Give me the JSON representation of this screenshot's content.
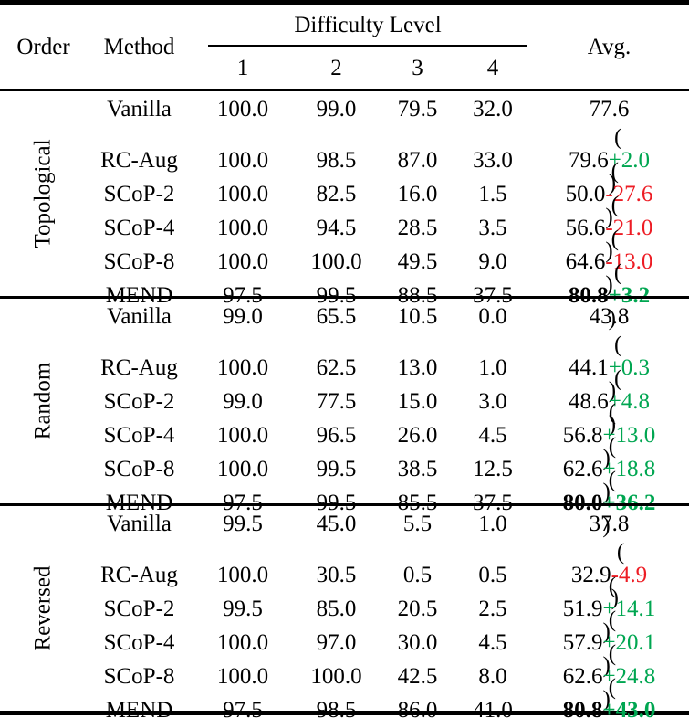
{
  "header": {
    "order": "Order",
    "method": "Method",
    "difficulty": "Difficulty Level",
    "levels": [
      "1",
      "2",
      "3",
      "4"
    ],
    "avg": "Avg."
  },
  "colors": {
    "green": "#00a651",
    "red": "#ed1c24",
    "text": "#000000",
    "background": "#ffffff"
  },
  "sections": [
    {
      "order": "Topological",
      "rows": [
        {
          "method": "Vanilla",
          "d1": "100.0",
          "d2": "99.0",
          "d3": "79.5",
          "d4": "32.0",
          "avg": "77.6",
          "delta": null,
          "delta_color": null,
          "bold": false
        },
        {
          "method": "RC-Aug",
          "d1": "100.0",
          "d2": "98.5",
          "d3": "87.0",
          "d4": "33.0",
          "avg": "79.6",
          "delta": "+2.0",
          "delta_color": "green",
          "bold": false
        },
        {
          "method": "SCoP-2",
          "d1": "100.0",
          "d2": "82.5",
          "d3": "16.0",
          "d4": "1.5",
          "avg": "50.0",
          "delta": "-27.6",
          "delta_color": "red",
          "bold": false
        },
        {
          "method": "SCoP-4",
          "d1": "100.0",
          "d2": "94.5",
          "d3": "28.5",
          "d4": "3.5",
          "avg": "56.6",
          "delta": "-21.0",
          "delta_color": "red",
          "bold": false
        },
        {
          "method": "SCoP-8",
          "d1": "100.0",
          "d2": "100.0",
          "d3": "49.5",
          "d4": "9.0",
          "avg": "64.6",
          "delta": "-13.0",
          "delta_color": "red",
          "bold": false
        },
        {
          "method": "MEND",
          "d1": "97.5",
          "d2": "99.5",
          "d3": "88.5",
          "d4": "37.5",
          "avg": "80.8",
          "delta": "+3.2",
          "delta_color": "green",
          "bold": true
        }
      ]
    },
    {
      "order": "Random",
      "rows": [
        {
          "method": "Vanilla",
          "d1": "99.0",
          "d2": "65.5",
          "d3": "10.5",
          "d4": "0.0",
          "avg": "43.8",
          "delta": null,
          "delta_color": null,
          "bold": false
        },
        {
          "method": "RC-Aug",
          "d1": "100.0",
          "d2": "62.5",
          "d3": "13.0",
          "d4": "1.0",
          "avg": "44.1",
          "delta": "+0.3",
          "delta_color": "green",
          "bold": false
        },
        {
          "method": "SCoP-2",
          "d1": "99.0",
          "d2": "77.5",
          "d3": "15.0",
          "d4": "3.0",
          "avg": "48.6",
          "delta": "+4.8",
          "delta_color": "green",
          "bold": false
        },
        {
          "method": "SCoP-4",
          "d1": "100.0",
          "d2": "96.5",
          "d3": "26.0",
          "d4": "4.5",
          "avg": "56.8",
          "delta": "+13.0",
          "delta_color": "green",
          "bold": false
        },
        {
          "method": "SCoP-8",
          "d1": "100.0",
          "d2": "99.5",
          "d3": "38.5",
          "d4": "12.5",
          "avg": "62.6",
          "delta": "+18.8",
          "delta_color": "green",
          "bold": false
        },
        {
          "method": "MEND",
          "d1": "97.5",
          "d2": "99.5",
          "d3": "85.5",
          "d4": "37.5",
          "avg": "80.0",
          "delta": "+36.2",
          "delta_color": "green",
          "bold": true
        }
      ]
    },
    {
      "order": "Reversed",
      "rows": [
        {
          "method": "Vanilla",
          "d1": "99.5",
          "d2": "45.0",
          "d3": "5.5",
          "d4": "1.0",
          "avg": "37.8",
          "delta": null,
          "delta_color": null,
          "bold": false
        },
        {
          "method": "RC-Aug",
          "d1": "100.0",
          "d2": "30.5",
          "d3": "0.5",
          "d4": "0.5",
          "avg": "32.9",
          "delta": "-4.9",
          "delta_color": "red",
          "bold": false
        },
        {
          "method": "SCoP-2",
          "d1": "99.5",
          "d2": "85.0",
          "d3": "20.5",
          "d4": "2.5",
          "avg": "51.9",
          "delta": "+14.1",
          "delta_color": "green",
          "bold": false
        },
        {
          "method": "SCoP-4",
          "d1": "100.0",
          "d2": "97.0",
          "d3": "30.0",
          "d4": "4.5",
          "avg": "57.9",
          "delta": "+20.1",
          "delta_color": "green",
          "bold": false
        },
        {
          "method": "SCoP-8",
          "d1": "100.0",
          "d2": "100.0",
          "d3": "42.5",
          "d4": "8.0",
          "avg": "62.6",
          "delta": "+24.8",
          "delta_color": "green",
          "bold": false
        },
        {
          "method": "MEND",
          "d1": "97.5",
          "d2": "98.5",
          "d3": "86.0",
          "d4": "41.0",
          "avg": "80.8",
          "delta": "+43.0",
          "delta_color": "green",
          "bold": true
        }
      ]
    }
  ]
}
